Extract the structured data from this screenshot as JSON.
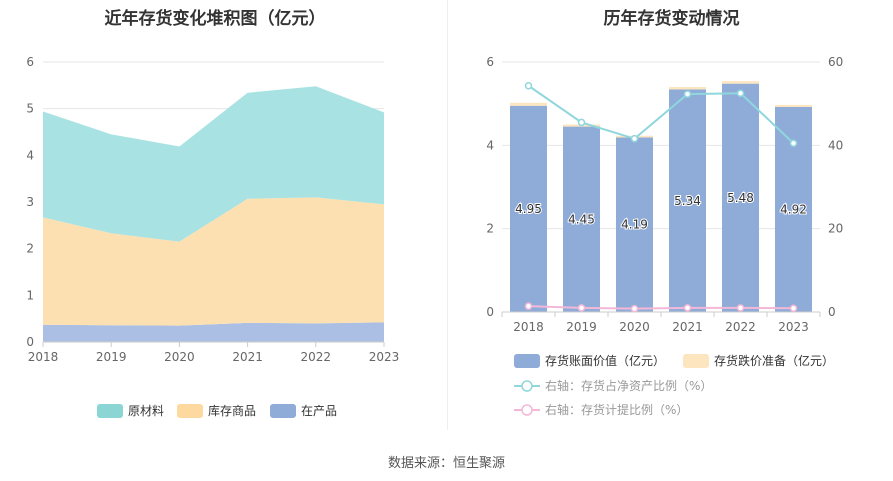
{
  "left": {
    "title": "近年存货变化堆积图（亿元）",
    "legend": [
      "原材料",
      "库存商品",
      "在产品"
    ]
  },
  "right": {
    "title": "历年存货变动情况",
    "legend": {
      "book_value": "存货账面价值（亿元）",
      "provision": "存货跌价准备（亿元）",
      "ratio_net_assets": "右轴：存货占净资产比例（%）",
      "ratio_provision": "右轴：存货计提比例（%）"
    }
  },
  "source": "数据来源：恒生聚源",
  "chart_data": [
    {
      "type": "area",
      "title": "近年存货变化堆积图（亿元）",
      "x": [
        "2018",
        "2019",
        "2020",
        "2021",
        "2022",
        "2023"
      ],
      "ylim": [
        0,
        6
      ],
      "yticks": [
        0,
        1,
        2,
        3,
        4,
        5,
        6
      ],
      "stacked": true,
      "series": [
        {
          "name": "在产品",
          "color": "#aabfe3",
          "values": [
            0.37,
            0.36,
            0.35,
            0.41,
            0.4,
            0.42
          ]
        },
        {
          "name": "库存商品",
          "color": "#fde0b2",
          "values": [
            2.3,
            1.97,
            1.8,
            2.66,
            2.7,
            2.53
          ]
        },
        {
          "name": "原材料",
          "color": "#a8e2e2",
          "values": [
            2.27,
            2.12,
            2.04,
            2.27,
            2.38,
            1.97
          ]
        }
      ],
      "legend_colors": [
        "#8bd5d5",
        "#fdd99f",
        "#8facd9"
      ],
      "legend_position": "bottom"
    },
    {
      "type": "bar",
      "title": "历年存货变动情况",
      "categories": [
        "2018",
        "2019",
        "2020",
        "2021",
        "2022",
        "2023"
      ],
      "ylim": [
        0,
        6
      ],
      "yticks": [
        0,
        2,
        4,
        6
      ],
      "y2lim": [
        0,
        60
      ],
      "y2ticks": [
        0,
        20,
        40,
        60
      ],
      "series": [
        {
          "name": "存货账面价值（亿元）",
          "color": "#8facd9",
          "values": [
            4.95,
            4.45,
            4.19,
            5.34,
            5.48,
            4.92
          ],
          "labels": [
            "4.95",
            "4.45",
            "4.19",
            "5.34",
            "5.48",
            "4.92"
          ]
        },
        {
          "name": "存货跌价准备（亿元）",
          "color": "#fde6bf",
          "values": [
            0.07,
            0.05,
            0.04,
            0.06,
            0.06,
            0.05
          ]
        },
        {
          "name": "右轴：存货占净资产比例（%）",
          "type": "line",
          "axis": "right",
          "color": "#8fd6dd",
          "values": [
            54.3,
            45.5,
            41.6,
            52.3,
            52.5,
            40.5
          ]
        },
        {
          "name": "右轴：存货计提比例（%）",
          "type": "line",
          "axis": "right",
          "color": "#f3b8d8",
          "values": [
            1.4,
            1.0,
            0.8,
            1.0,
            1.0,
            0.9
          ]
        }
      ],
      "legend_position": "bottom"
    }
  ]
}
